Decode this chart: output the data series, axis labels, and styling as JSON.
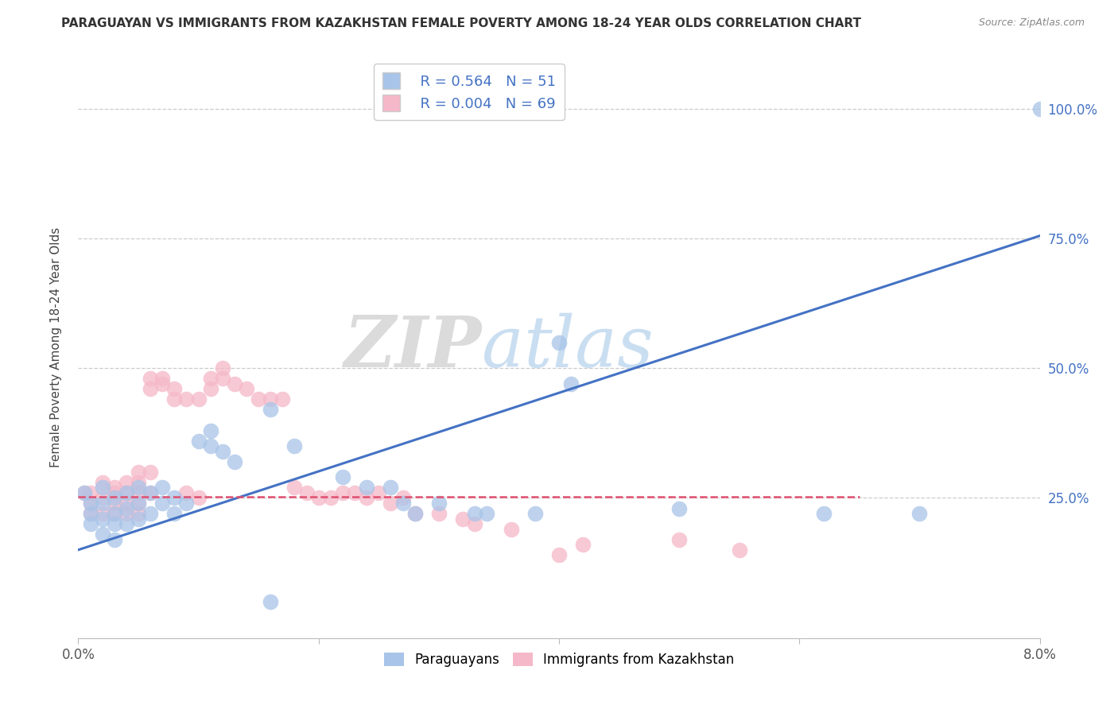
{
  "title": "PARAGUAYAN VS IMMIGRANTS FROM KAZAKHSTAN FEMALE POVERTY AMONG 18-24 YEAR OLDS CORRELATION CHART",
  "source": "Source: ZipAtlas.com",
  "ylabel": "Female Poverty Among 18-24 Year Olds",
  "xlim": [
    0.0,
    0.08
  ],
  "ylim": [
    -0.02,
    1.1
  ],
  "xticks": [
    0.0,
    0.02,
    0.04,
    0.06,
    0.08
  ],
  "xticklabels": [
    "0.0%",
    "",
    "",
    "",
    "8.0%"
  ],
  "ytick_positions": [
    0.25,
    0.5,
    0.75,
    1.0
  ],
  "ytick_labels": [
    "25.0%",
    "50.0%",
    "75.0%",
    "100.0%"
  ],
  "watermark_zip": "ZIP",
  "watermark_atlas": "atlas",
  "legend_blue_r": "0.564",
  "legend_blue_n": "51",
  "legend_pink_r": "0.004",
  "legend_pink_n": "69",
  "blue_color": "#a8c4e8",
  "pink_color": "#f5b8c8",
  "blue_line_color": "#4472c4",
  "pink_line_color": "#e05070",
  "blue_scatter": [
    [
      0.0005,
      0.26
    ],
    [
      0.001,
      0.24
    ],
    [
      0.001,
      0.22
    ],
    [
      0.001,
      0.2
    ],
    [
      0.002,
      0.27
    ],
    [
      0.002,
      0.24
    ],
    [
      0.002,
      0.21
    ],
    [
      0.002,
      0.18
    ],
    [
      0.003,
      0.25
    ],
    [
      0.003,
      0.22
    ],
    [
      0.003,
      0.2
    ],
    [
      0.003,
      0.17
    ],
    [
      0.004,
      0.26
    ],
    [
      0.004,
      0.23
    ],
    [
      0.004,
      0.2
    ],
    [
      0.005,
      0.27
    ],
    [
      0.005,
      0.24
    ],
    [
      0.005,
      0.21
    ],
    [
      0.006,
      0.26
    ],
    [
      0.006,
      0.22
    ],
    [
      0.007,
      0.27
    ],
    [
      0.007,
      0.24
    ],
    [
      0.008,
      0.25
    ],
    [
      0.008,
      0.22
    ],
    [
      0.009,
      0.24
    ],
    [
      0.01,
      0.36
    ],
    [
      0.011,
      0.38
    ],
    [
      0.011,
      0.35
    ],
    [
      0.012,
      0.34
    ],
    [
      0.013,
      0.32
    ],
    [
      0.016,
      0.42
    ],
    [
      0.018,
      0.35
    ],
    [
      0.022,
      0.29
    ],
    [
      0.024,
      0.27
    ],
    [
      0.026,
      0.27
    ],
    [
      0.027,
      0.24
    ],
    [
      0.028,
      0.22
    ],
    [
      0.03,
      0.24
    ],
    [
      0.033,
      0.22
    ],
    [
      0.034,
      0.22
    ],
    [
      0.038,
      0.22
    ],
    [
      0.04,
      0.55
    ],
    [
      0.041,
      0.47
    ],
    [
      0.05,
      0.23
    ],
    [
      0.062,
      0.22
    ],
    [
      0.07,
      0.22
    ],
    [
      0.08,
      1.0
    ],
    [
      0.016,
      0.05
    ]
  ],
  "pink_scatter": [
    [
      0.0005,
      0.26
    ],
    [
      0.001,
      0.26
    ],
    [
      0.001,
      0.24
    ],
    [
      0.001,
      0.22
    ],
    [
      0.002,
      0.28
    ],
    [
      0.002,
      0.25
    ],
    [
      0.002,
      0.22
    ],
    [
      0.003,
      0.27
    ],
    [
      0.003,
      0.26
    ],
    [
      0.003,
      0.24
    ],
    [
      0.003,
      0.22
    ],
    [
      0.004,
      0.28
    ],
    [
      0.004,
      0.26
    ],
    [
      0.004,
      0.24
    ],
    [
      0.004,
      0.22
    ],
    [
      0.005,
      0.3
    ],
    [
      0.005,
      0.28
    ],
    [
      0.005,
      0.26
    ],
    [
      0.005,
      0.24
    ],
    [
      0.005,
      0.22
    ],
    [
      0.006,
      0.48
    ],
    [
      0.006,
      0.46
    ],
    [
      0.006,
      0.3
    ],
    [
      0.006,
      0.26
    ],
    [
      0.007,
      0.48
    ],
    [
      0.007,
      0.47
    ],
    [
      0.008,
      0.46
    ],
    [
      0.008,
      0.44
    ],
    [
      0.009,
      0.44
    ],
    [
      0.009,
      0.26
    ],
    [
      0.01,
      0.44
    ],
    [
      0.01,
      0.25
    ],
    [
      0.011,
      0.48
    ],
    [
      0.011,
      0.46
    ],
    [
      0.012,
      0.5
    ],
    [
      0.012,
      0.48
    ],
    [
      0.013,
      0.47
    ],
    [
      0.014,
      0.46
    ],
    [
      0.015,
      0.44
    ],
    [
      0.016,
      0.44
    ],
    [
      0.017,
      0.44
    ],
    [
      0.018,
      0.27
    ],
    [
      0.019,
      0.26
    ],
    [
      0.02,
      0.25
    ],
    [
      0.021,
      0.25
    ],
    [
      0.022,
      0.26
    ],
    [
      0.023,
      0.26
    ],
    [
      0.024,
      0.25
    ],
    [
      0.025,
      0.26
    ],
    [
      0.026,
      0.24
    ],
    [
      0.027,
      0.25
    ],
    [
      0.028,
      0.22
    ],
    [
      0.03,
      0.22
    ],
    [
      0.032,
      0.21
    ],
    [
      0.033,
      0.2
    ],
    [
      0.036,
      0.19
    ],
    [
      0.04,
      0.14
    ],
    [
      0.042,
      0.16
    ],
    [
      0.05,
      0.17
    ],
    [
      0.055,
      0.15
    ]
  ],
  "blue_trendline": [
    [
      0.0,
      0.15
    ],
    [
      0.08,
      0.755
    ]
  ],
  "pink_trendline": [
    [
      0.0,
      0.252
    ],
    [
      0.065,
      0.252
    ]
  ]
}
